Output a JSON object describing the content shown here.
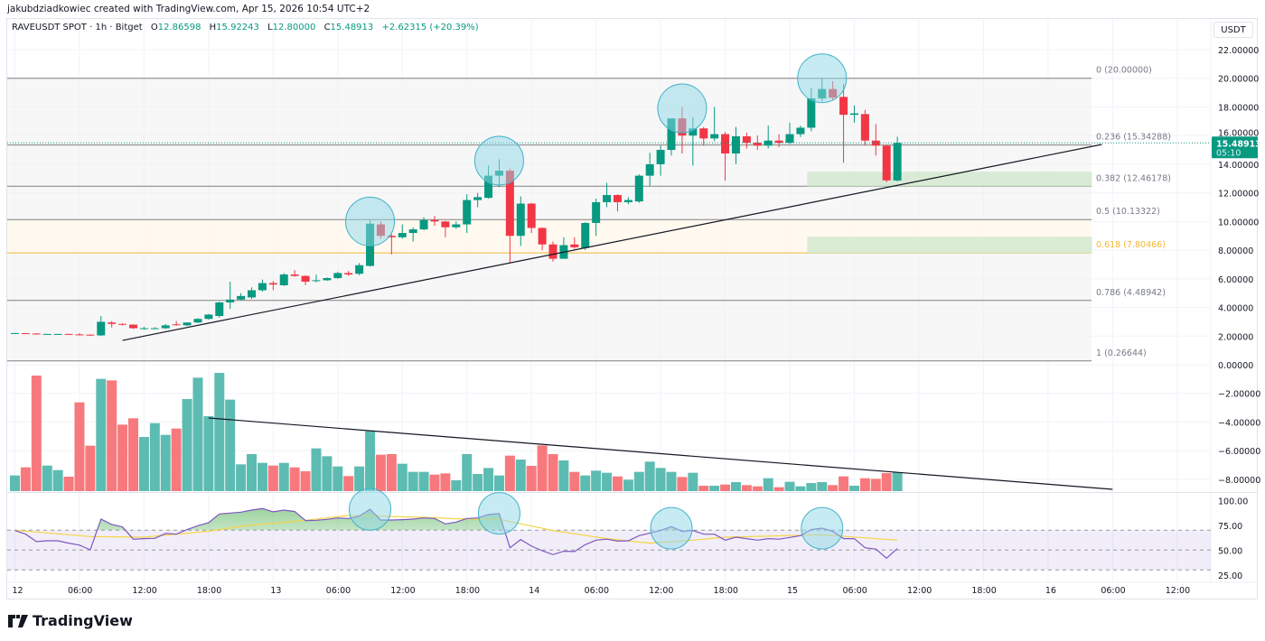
{
  "header": {
    "credit": "jakubdziadkowiec created with TradingView.com, Apr 15, 2026 10:54 UTC+2",
    "symbol": "RAVEUSDT SPOT · 1h · Bitget",
    "o_label": "O",
    "o_value": "12.86598",
    "h_label": "H",
    "h_value": "15.92243",
    "l_label": "L",
    "l_value": "12.80000",
    "c_label": "C",
    "c_value": "15.48913",
    "change": "+2.62315 (+20.39%)"
  },
  "currency": "USDT",
  "last_price": {
    "value": "15.48913",
    "countdown": "05:10",
    "price": 15.48913
  },
  "footer": {
    "brand": "TradingView"
  },
  "colors": {
    "up": "#089981",
    "down": "#f23645",
    "vol_up": "#5dbcb2",
    "vol_down": "#f7797d",
    "rsi": "#7e57c2",
    "rsi_ma": "#f5d447",
    "fib_line": "#808080",
    "fib_618": "#f5b731",
    "zone": "#cfe8cc",
    "circle": "#8fd8e8"
  },
  "chart_data": {
    "type": "candlestick",
    "interval": "1h",
    "first_candle": "Apr 12 00:00",
    "candles": [
      [
        2.2,
        2.22,
        2.18,
        2.21
      ],
      [
        2.2,
        2.21,
        2.17,
        2.18
      ],
      [
        2.18,
        2.2,
        2.1,
        2.15
      ],
      [
        2.14,
        2.16,
        2.12,
        2.15
      ],
      [
        2.14,
        2.16,
        2.12,
        2.15
      ],
      [
        2.15,
        2.16,
        2.1,
        2.12
      ],
      [
        2.12,
        2.2,
        2.05,
        2.08
      ],
      [
        2.1,
        2.12,
        2.02,
        2.05
      ],
      [
        2.05,
        3.4,
        2.0,
        3.0
      ],
      [
        2.95,
        3.05,
        2.6,
        2.85
      ],
      [
        2.85,
        2.9,
        2.75,
        2.8
      ],
      [
        2.8,
        2.82,
        2.5,
        2.55
      ],
      [
        2.5,
        2.65,
        2.45,
        2.55
      ],
      [
        2.52,
        2.62,
        2.48,
        2.55
      ],
      [
        2.55,
        2.85,
        2.5,
        2.75
      ],
      [
        2.82,
        3.05,
        2.72,
        2.76
      ],
      [
        2.75,
        2.95,
        2.7,
        2.95
      ],
      [
        2.95,
        3.25,
        2.9,
        3.2
      ],
      [
        3.2,
        3.55,
        3.15,
        3.5
      ],
      [
        3.4,
        4.4,
        3.3,
        4.35
      ],
      [
        4.35,
        5.8,
        3.9,
        4.55
      ],
      [
        4.55,
        5.0,
        4.5,
        4.8
      ],
      [
        4.7,
        5.4,
        4.6,
        5.2
      ],
      [
        5.2,
        5.95,
        5.1,
        5.7
      ],
      [
        5.7,
        5.85,
        5.2,
        5.6
      ],
      [
        5.55,
        6.4,
        5.5,
        6.3
      ],
      [
        6.3,
        6.6,
        6.15,
        6.2
      ],
      [
        6.2,
        6.25,
        5.55,
        5.8
      ],
      [
        5.85,
        6.3,
        5.75,
        5.9
      ],
      [
        5.9,
        6.1,
        5.85,
        6.05
      ],
      [
        6.05,
        6.5,
        6.0,
        6.4
      ],
      [
        6.4,
        6.55,
        6.2,
        6.3
      ],
      [
        6.35,
        7.1,
        6.25,
        6.95
      ],
      [
        6.9,
        10.1,
        6.85,
        9.85
      ],
      [
        9.8,
        10.0,
        8.8,
        9.0
      ],
      [
        9.0,
        9.1,
        7.7,
        8.9
      ],
      [
        8.9,
        9.8,
        8.8,
        9.2
      ],
      [
        9.2,
        9.6,
        8.6,
        9.45
      ],
      [
        9.45,
        10.3,
        9.4,
        10.1
      ],
      [
        10.1,
        10.4,
        9.7,
        10.0
      ],
      [
        10.0,
        10.05,
        8.9,
        9.6
      ],
      [
        9.6,
        10.0,
        9.5,
        9.8
      ],
      [
        9.8,
        11.9,
        9.2,
        11.5
      ],
      [
        11.5,
        12.0,
        11.0,
        11.7
      ],
      [
        11.65,
        13.9,
        11.6,
        13.2
      ],
      [
        13.2,
        14.35,
        12.4,
        13.55
      ],
      [
        13.55,
        13.7,
        7.1,
        9.0
      ],
      [
        9.0,
        11.75,
        8.3,
        11.25
      ],
      [
        11.25,
        11.3,
        9.2,
        9.55
      ],
      [
        9.55,
        9.6,
        8.0,
        8.4
      ],
      [
        8.4,
        8.6,
        7.2,
        7.4
      ],
      [
        7.4,
        8.9,
        7.4,
        8.35
      ],
      [
        8.4,
        8.9,
        8.1,
        8.2
      ],
      [
        8.15,
        9.95,
        8.0,
        9.9
      ],
      [
        9.9,
        11.6,
        9.0,
        11.35
      ],
      [
        11.35,
        12.7,
        11.0,
        11.85
      ],
      [
        11.85,
        11.9,
        10.7,
        11.35
      ],
      [
        11.35,
        11.7,
        11.2,
        11.5
      ],
      [
        11.4,
        13.3,
        11.3,
        13.2
      ],
      [
        13.2,
        14.8,
        12.5,
        14.0
      ],
      [
        14.0,
        15.3,
        13.2,
        15.0
      ],
      [
        15.0,
        17.2,
        14.6,
        17.2
      ],
      [
        17.2,
        18.0,
        14.75,
        16.0
      ],
      [
        16.0,
        17.3,
        13.9,
        16.5
      ],
      [
        16.5,
        16.6,
        15.3,
        15.8
      ],
      [
        15.8,
        18.0,
        15.6,
        16.1
      ],
      [
        16.1,
        16.25,
        12.85,
        14.75
      ],
      [
        14.75,
        16.6,
        14.0,
        15.95
      ],
      [
        15.95,
        16.2,
        15.1,
        15.5
      ],
      [
        15.5,
        16.0,
        15.0,
        15.3
      ],
      [
        15.3,
        16.7,
        15.1,
        15.65
      ],
      [
        15.65,
        16.1,
        15.2,
        15.5
      ],
      [
        15.5,
        16.9,
        15.4,
        16.1
      ],
      [
        16.1,
        16.7,
        15.9,
        16.55
      ],
      [
        16.55,
        19.3,
        16.3,
        18.6
      ],
      [
        18.6,
        20.0,
        18.4,
        19.25
      ],
      [
        19.25,
        19.8,
        18.5,
        18.65
      ],
      [
        18.7,
        19.6,
        14.1,
        17.45
      ],
      [
        17.45,
        18.1,
        16.9,
        17.55
      ],
      [
        17.5,
        17.8,
        15.3,
        15.65
      ],
      [
        15.65,
        16.8,
        14.6,
        15.3
      ],
      [
        15.3,
        15.35,
        12.75,
        12.87
      ],
      [
        12.866,
        15.922,
        12.8,
        15.489
      ]
    ],
    "volume": [
      52,
      79,
      384,
      85,
      70,
      48,
      295,
      151,
      373,
      368,
      221,
      242,
      180,
      226,
      187,
      208,
      306,
      377,
      249,
      393,
      304,
      89,
      123,
      94,
      85,
      94,
      79,
      66,
      142,
      116,
      82,
      50,
      82,
      199,
      121,
      123,
      91,
      64,
      64,
      55,
      59,
      36,
      123,
      57,
      77,
      52,
      118,
      105,
      84,
      152,
      123,
      102,
      64,
      52,
      68,
      61,
      49,
      38,
      64,
      98,
      77,
      64,
      47,
      61,
      18,
      18,
      22,
      30,
      20,
      16,
      43,
      13,
      31,
      16,
      27,
      30,
      20,
      49,
      18,
      43,
      41,
      60,
      63
    ],
    "rsi": [
      69.7,
      66,
      58.5,
      59.4,
      59.4,
      57,
      55,
      50.3,
      81.2,
      75.8,
      73.3,
      61,
      61.5,
      61.8,
      66.7,
      66,
      70.6,
      74.5,
      77.6,
      86.4,
      87.3,
      88.2,
      90.3,
      91.8,
      88.5,
      90.3,
      88.8,
      79.7,
      80,
      80.9,
      82.4,
      81.8,
      84.2,
      91.2,
      80.3,
      80.3,
      80.6,
      81.2,
      82.4,
      81.8,
      76.4,
      78.2,
      81.8,
      82.4,
      85.8,
      86.7,
      52.4,
      60.6,
      54,
      49.4,
      45.5,
      48.8,
      48.5,
      55.5,
      60,
      61,
      59,
      59.4,
      64.5,
      67,
      69.7,
      73.6,
      68.8,
      69.7,
      66,
      66,
      60,
      63,
      61.5,
      60,
      61.5,
      61,
      62.7,
      64.5,
      70.6,
      72.1,
      68.8,
      61.5,
      61.5,
      52.4,
      51,
      41.8,
      51.5
    ],
    "rsi_ma": [
      [
        "Apr 12 00:00",
        70
      ],
      [
        "Apr 12 07:00",
        63.6
      ],
      [
        "Apr 12 12:00",
        63
      ],
      [
        "Apr 12 18:00",
        69
      ],
      [
        "Apr 12 21:00",
        74
      ],
      [
        "Apr 13 03:00",
        80
      ],
      [
        "Apr 13 07:00",
        85
      ],
      [
        "Apr 13 14:00",
        83
      ],
      [
        "Apr 13 17:00",
        81.5
      ],
      [
        "Apr 13 21:00",
        81
      ],
      [
        "Apr 14 02:00",
        69.7
      ],
      [
        "Apr 14 07:00",
        61.5
      ],
      [
        "Apr 14 11:00",
        57
      ],
      [
        "Apr 14 15:00",
        60
      ],
      [
        "Apr 14 18:00",
        63
      ],
      [
        "Apr 15 03:00",
        65.5
      ],
      [
        "Apr 15 10:00",
        60
      ]
    ],
    "rsi_levels": [
      70,
      50,
      30
    ],
    "price_ticks": [
      "22.00000",
      "20.00000",
      "18.00000",
      "16.00000",
      "14.00000",
      "12.00000",
      "10.00000",
      "8.00000",
      "6.00000",
      "4.00000",
      "2.00000",
      "0.00000",
      "−2.00000",
      "−4.00000",
      "−6.00000",
      "−8.00000"
    ],
    "rsi_ticks": [
      "100.00",
      "75.00",
      "50.00",
      "25.00"
    ],
    "x_ticks": [
      {
        "label": "12",
        "time": "Apr 12 00:00"
      },
      {
        "label": "06:00",
        "time": "Apr 12 06:00"
      },
      {
        "label": "12:00",
        "time": "Apr 12 12:00"
      },
      {
        "label": "18:00",
        "time": "Apr 12 18:00"
      },
      {
        "label": "13",
        "time": "Apr 13 00:00"
      },
      {
        "label": "06:00",
        "time": "Apr 13 06:00"
      },
      {
        "label": "12:00",
        "time": "Apr 13 12:00"
      },
      {
        "label": "18:00",
        "time": "Apr 13 18:00"
      },
      {
        "label": "14",
        "time": "Apr 14 00:00"
      },
      {
        "label": "06:00",
        "time": "Apr 14 06:00"
      },
      {
        "label": "12:00",
        "time": "Apr 14 12:00"
      },
      {
        "label": "18:00",
        "time": "Apr 14 18:00"
      },
      {
        "label": "15",
        "time": "Apr 15 00:00"
      },
      {
        "label": "06:00",
        "time": "Apr 15 06:00"
      },
      {
        "label": "12:00",
        "time": "Apr 15 12:00"
      },
      {
        "label": "18:00",
        "time": "Apr 15 18:00"
      },
      {
        "label": "16",
        "time": "Apr 16 00:00"
      },
      {
        "label": "06:00",
        "time": "Apr 16 06:00"
      },
      {
        "label": "12:00",
        "time": "Apr 16 12:00"
      }
    ],
    "fib_levels": [
      {
        "ratio": 0,
        "price": 20.0,
        "label": "0 (20.00000)"
      },
      {
        "ratio": 0.236,
        "price": 15.34288,
        "label": "0.236 (15.34288)"
      },
      {
        "ratio": 0.382,
        "price": 12.46178,
        "label": "0.382 (12.46178)"
      },
      {
        "ratio": 0.5,
        "price": 10.13322,
        "label": "0.5 (10.13322)"
      },
      {
        "ratio": 0.618,
        "price": 7.80466,
        "label": "0.618 (7.80466)"
      },
      {
        "ratio": 0.786,
        "price": 4.48942,
        "label": "0.786 (4.48942)"
      },
      {
        "ratio": 1,
        "price": 0.26644,
        "label": "1 (0.26644)"
      }
    ],
    "zones": [
      {
        "from_time": "Apr 15 02:00",
        "low": 12.46,
        "high": 13.45
      },
      {
        "from_time": "Apr 15 02:00",
        "low": 7.8,
        "high": 8.9
      }
    ],
    "price_trendline": [
      [
        "Apr 12 10:00",
        1.7
      ],
      [
        "Apr 16 05:00",
        15.38
      ]
    ],
    "volume_trendline": [
      [
        "Apr 12 18:00",
        243
      ],
      [
        "Apr 16 06:00",
        6
      ]
    ],
    "price_circles": [
      [
        "Apr 13 09:00",
        10.0
      ],
      [
        "Apr 13 21:00",
        14.25
      ],
      [
        "Apr 14 14:00",
        17.9
      ],
      [
        "Apr 15 03:00",
        20.0
      ]
    ],
    "rsi_circles": [
      [
        "Apr 13 09:00",
        91
      ],
      [
        "Apr 13 21:00",
        87
      ],
      [
        "Apr 14 13:00",
        72
      ],
      [
        "Apr 15 03:00",
        72
      ]
    ]
  }
}
